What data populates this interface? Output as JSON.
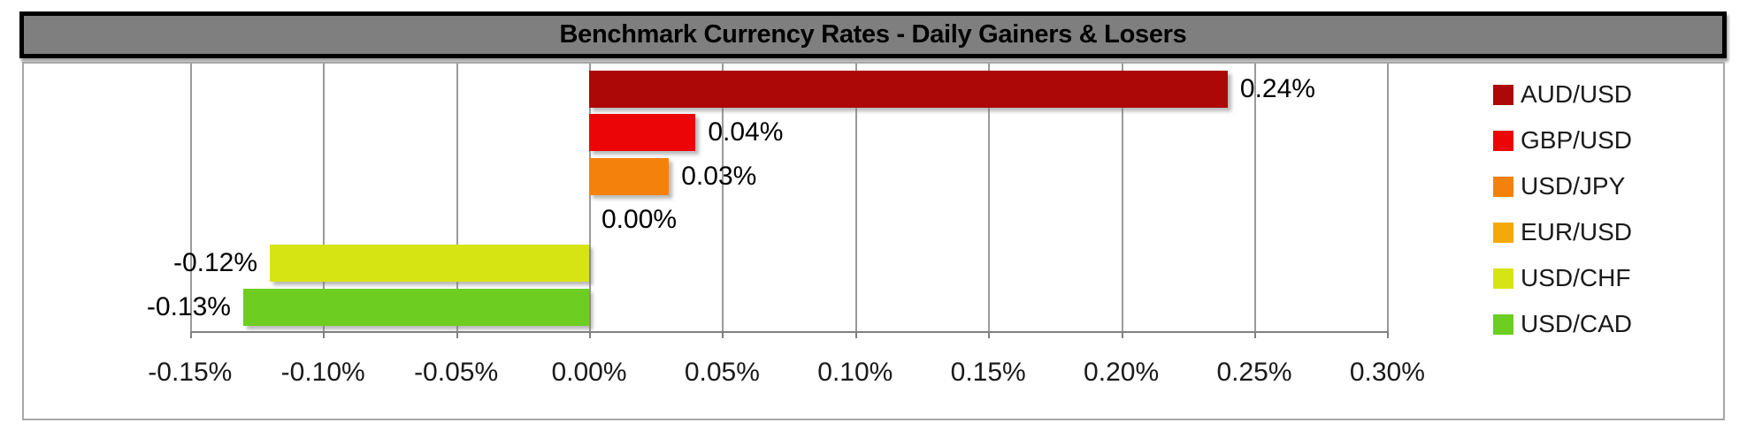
{
  "title": "Benchmark Currency Rates - Daily Gainers & Losers",
  "chart_data": {
    "type": "bar",
    "orientation": "horizontal",
    "title": "Benchmark Currency Rates - Daily Gainers & Losers",
    "categories": [
      "AUD/USD",
      "GBP/USD",
      "USD/JPY",
      "EUR/USD",
      "USD/CHF",
      "USD/CAD"
    ],
    "values": [
      0.24,
      0.04,
      0.03,
      0.0,
      -0.12,
      -0.13
    ],
    "value_labels": [
      "0.24%",
      "0.04%",
      "0.03%",
      "0.00%",
      "-0.12%",
      "-0.13%"
    ],
    "bar_colors": [
      "#AB0807",
      "#EB0507",
      "#F5810D",
      "#F4A90B",
      "#D7E414",
      "#6DCD21"
    ],
    "xlabel": "",
    "ylabel": "",
    "xlim": [
      -0.15,
      0.3
    ],
    "x_tick_values": [
      -0.15,
      -0.1,
      -0.05,
      0.0,
      0.05,
      0.1,
      0.15,
      0.2,
      0.25,
      0.3
    ],
    "x_tick_labels": [
      "-0.15%",
      "-0.10%",
      "-0.05%",
      "0.00%",
      "0.05%",
      "0.10%",
      "0.15%",
      "0.20%",
      "0.25%",
      "0.30%"
    ],
    "grid": true,
    "legend_position": "right",
    "legend_entries": [
      "AUD/USD",
      "GBP/USD",
      "USD/JPY",
      "EUR/USD",
      "USD/CHF",
      "USD/CAD"
    ]
  },
  "colors": {
    "title_bg": "#7F7F7F",
    "title_text": "#000000",
    "title_border": "#000000",
    "chart_border": "#A6A6A6",
    "gridline": "#9A9A9A",
    "axis": "#808080",
    "background": "#FFFFFF"
  }
}
